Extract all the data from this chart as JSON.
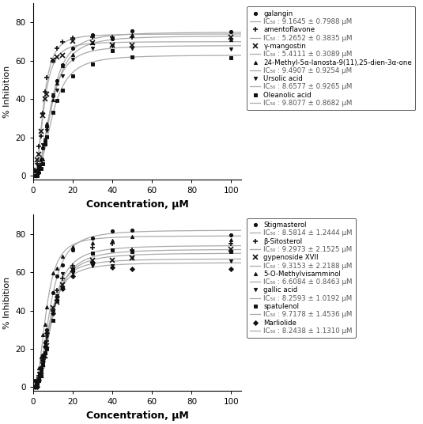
{
  "panel1": {
    "compounds": [
      {
        "name": "galangin",
        "marker": "o",
        "ic50": 9.1645,
        "vmax": 75.0,
        "n": 2.5,
        "seed": 10
      },
      {
        "name": "amentoflavone",
        "marker": "+",
        "ic50": 5.2652,
        "vmax": 74.0,
        "n": 2.5,
        "seed": 20
      },
      {
        "name": "γ-mangostin",
        "marker": "x",
        "ic50": 5.4111,
        "vmax": 70.0,
        "n": 2.5,
        "seed": 30
      },
      {
        "name": "24-Methyl-5α-lanosta-9(11),25-dien-3α-one",
        "marker": "^",
        "ic50": 9.4907,
        "vmax": 73.0,
        "n": 2.5,
        "seed": 40
      },
      {
        "name": "Ursolic acid",
        "marker": "v",
        "ic50": 8.6577,
        "vmax": 68.0,
        "n": 2.5,
        "seed": 50
      },
      {
        "name": "Oleanolic acid",
        "marker": "s",
        "ic50": 9.8077,
        "vmax": 63.0,
        "n": 2.5,
        "seed": 60
      }
    ],
    "ic50_labels": [
      "IC₅₀ : 9.1645 ± 0.7988 μM",
      "IC₅₀ : 5.2652 ± 0.3835 μM",
      "IC₅₀ : 5.4111 ± 0.3089 μM",
      "IC₅₀ : 9.4907 ± 0.9254 μM",
      "IC₅₀ : 8.6577 ± 0.9265 μM",
      "IC₅₀ : 9.8077 ± 0.8682 μM"
    ]
  },
  "panel2": {
    "compounds": [
      {
        "name": "Stigmasterol",
        "marker": "o",
        "ic50": 8.5814,
        "vmax": 82.0,
        "n": 2.5,
        "seed": 11
      },
      {
        "name": "β-Sitosterol",
        "marker": "+",
        "ic50": 9.2973,
        "vmax": 74.0,
        "n": 2.5,
        "seed": 21
      },
      {
        "name": "gypenoside XVII",
        "marker": "x",
        "ic50": 9.3153,
        "vmax": 70.0,
        "n": 2.5,
        "seed": 31
      },
      {
        "name": "5-O-Methylvisamminol",
        "marker": "^",
        "ic50": 6.6084,
        "vmax": 79.0,
        "n": 2.5,
        "seed": 41
      },
      {
        "name": "gallic acid",
        "marker": "v",
        "ic50": 8.2593,
        "vmax": 67.0,
        "n": 2.5,
        "seed": 51
      },
      {
        "name": "spatulenol",
        "marker": "s",
        "ic50": 9.7178,
        "vmax": 72.0,
        "n": 2.5,
        "seed": 61
      },
      {
        "name": "Marliolide",
        "marker": "D",
        "ic50": 8.2438,
        "vmax": 65.0,
        "n": 2.5,
        "seed": 71
      }
    ],
    "ic50_labels": [
      "IC₅₀ : 8.5814 ± 1.2444 μM",
      "IC₅₀ : 9.2973 ± 2.1525 μM",
      "IC₅₀ : 9.3153 ± 2.2188 μM",
      "IC₅₀ : 6.6084 ± 0.8463 μM",
      "IC₅₀ : 8.2593 ± 1.0192 μM",
      "IC₅₀ : 9.7178 ± 1.4536 μM",
      "IC₅₀ : 8.2438 ± 1.1310 μM"
    ]
  },
  "conc_points": [
    1.0,
    2.0,
    3.0,
    4.0,
    5.0,
    6.0,
    7.0,
    10.0,
    12.0,
    15.0,
    20.0,
    30.0,
    40.0,
    50.0,
    100.0
  ],
  "xlim": [
    0,
    105
  ],
  "ylim": [
    -2,
    90
  ],
  "xticks": [
    0,
    20,
    40,
    60,
    80,
    100
  ],
  "yticks": [
    0,
    20,
    40,
    60,
    80
  ],
  "xlabel": "Concentration, μM",
  "ylabel": "% Inhibition",
  "line_color": "#aaaaaa",
  "marker_color": "#111111",
  "marker_size": 3.0,
  "axis_fontsize": 8,
  "xlabel_fontsize": 9,
  "tick_fontsize": 7.5,
  "legend_fontsize": 6.2
}
